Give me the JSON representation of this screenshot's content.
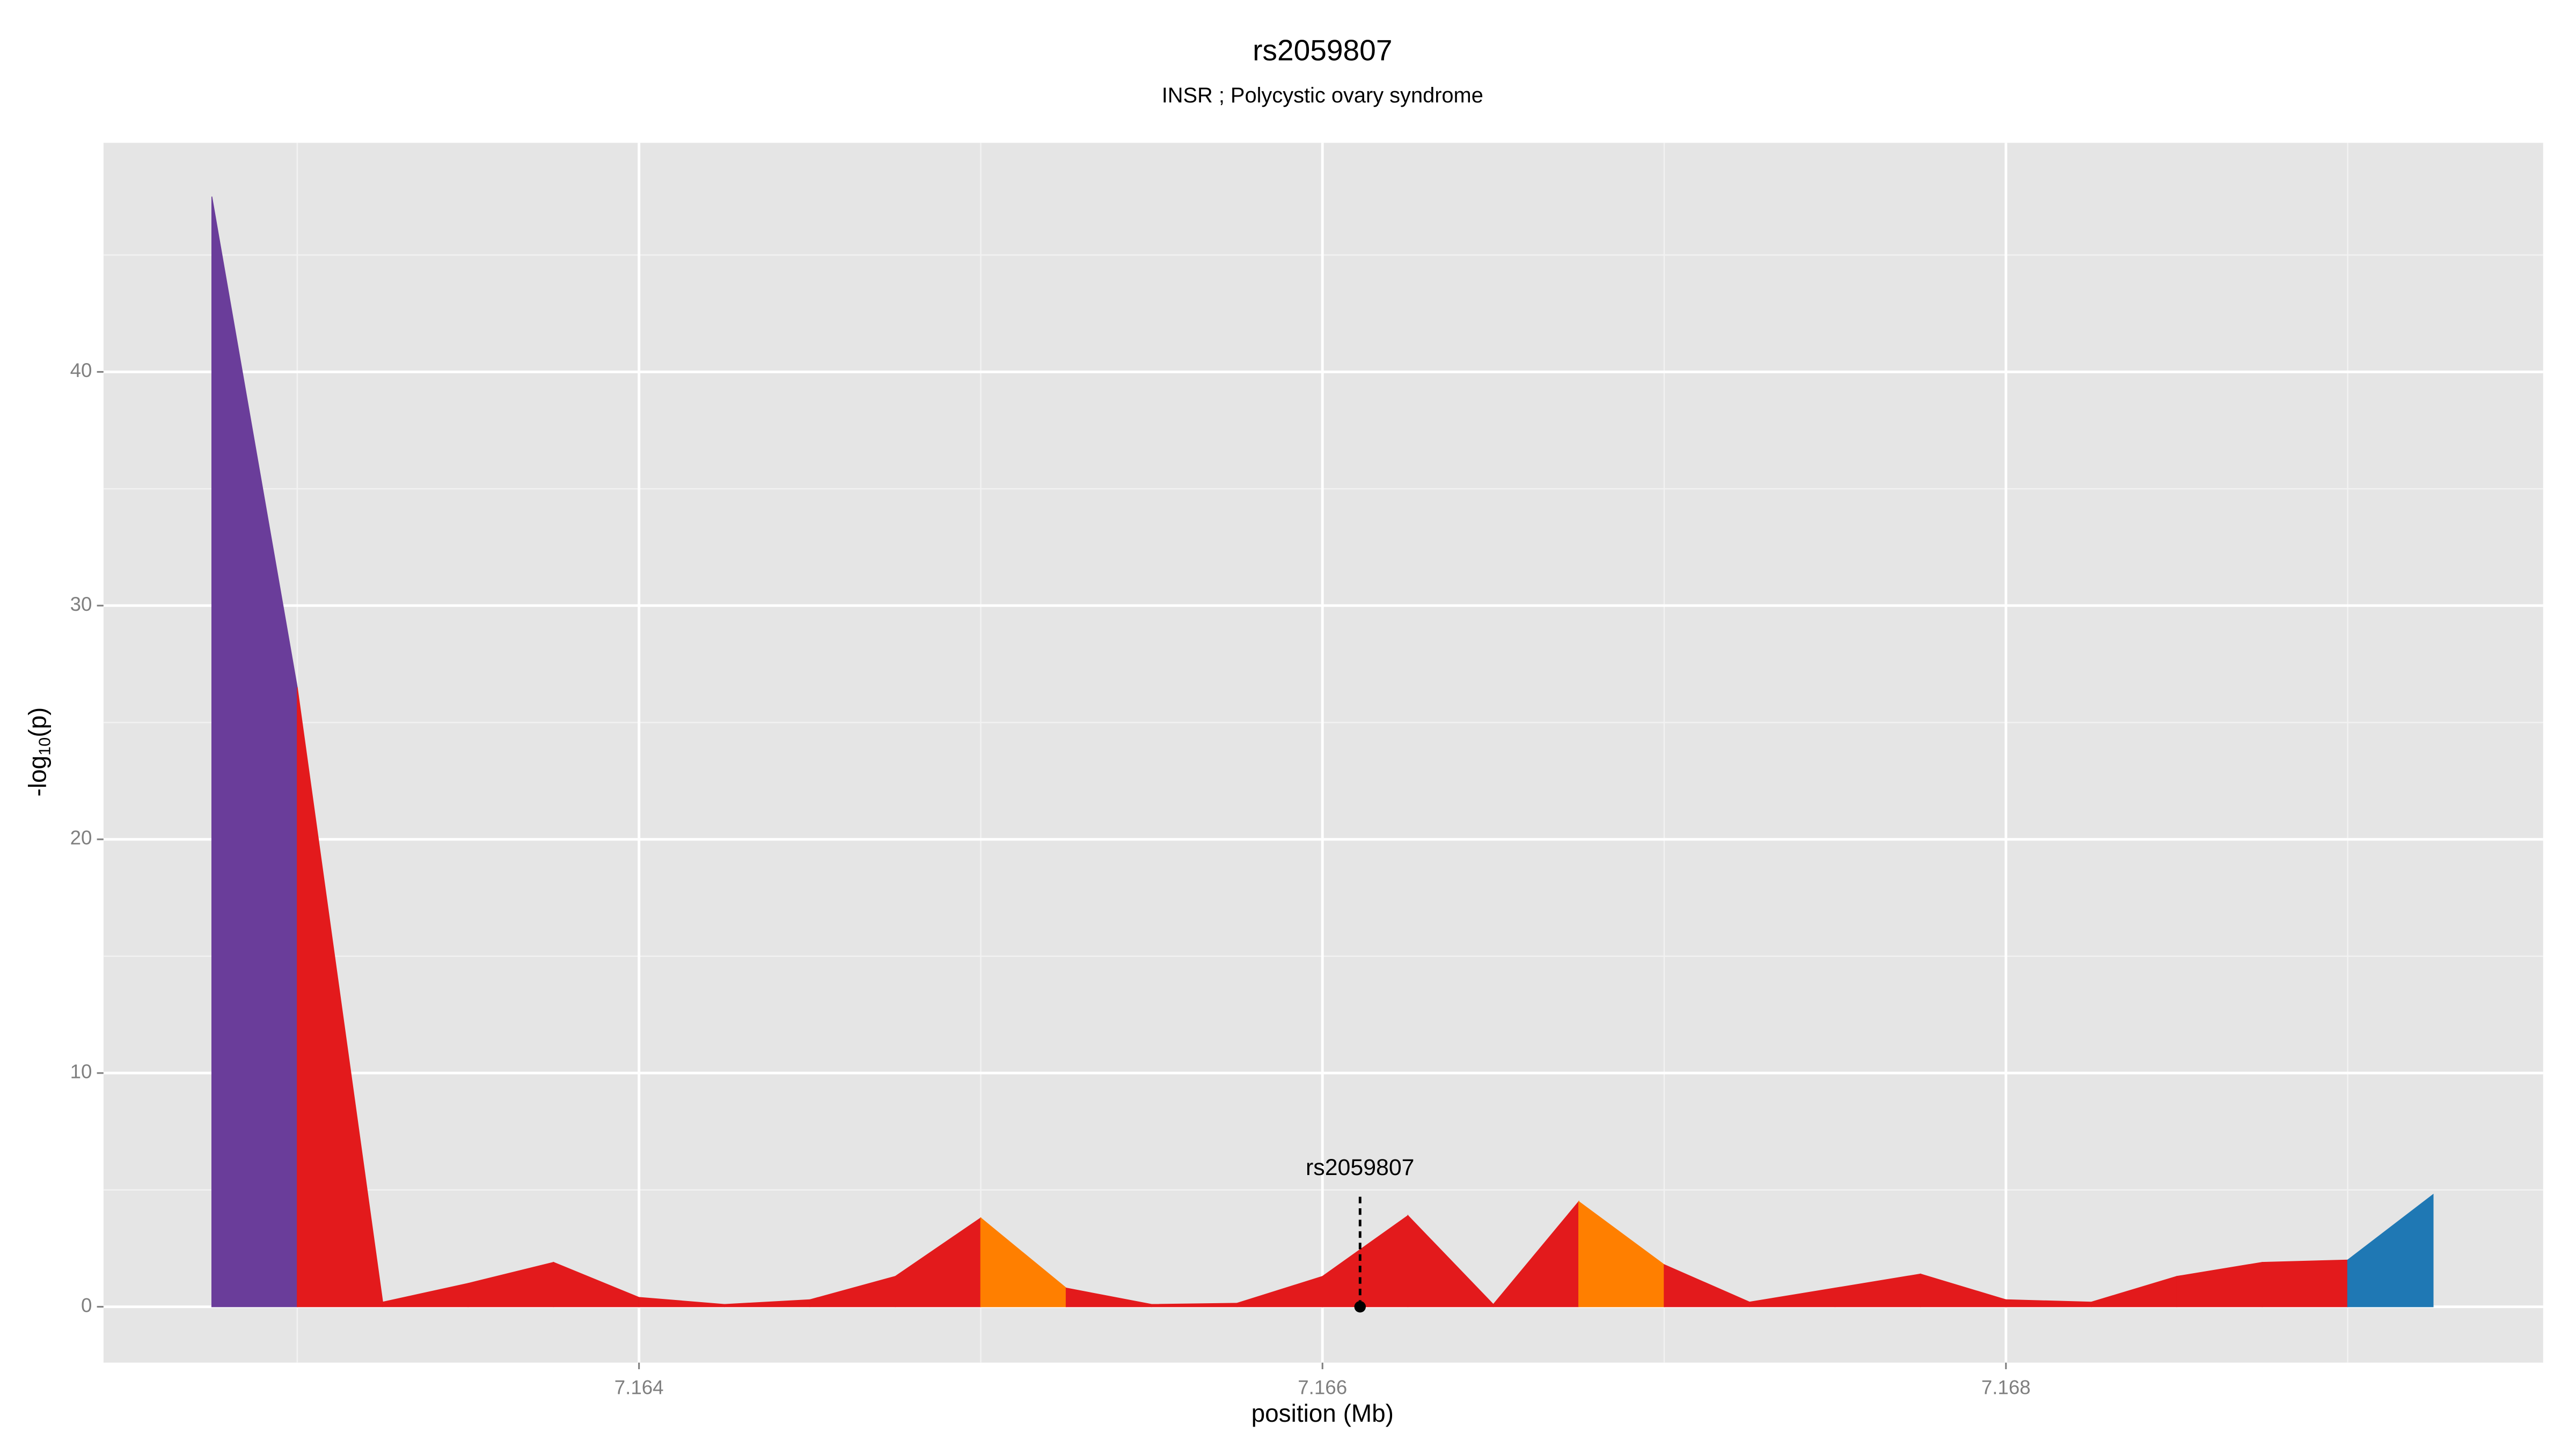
{
  "chart_data": {
    "type": "area",
    "title": "rs2059807",
    "subtitle": "INSR ; Polycystic ovary syndrome",
    "xlabel": "position (Mb)",
    "ylabel": [
      "-log",
      "10",
      "(p)"
    ],
    "x": [
      7.16275,
      7.163,
      7.16325,
      7.1635,
      7.16375,
      7.164,
      7.16425,
      7.1645,
      7.16475,
      7.165,
      7.16525,
      7.1655,
      7.16575,
      7.166,
      7.16625,
      7.1665,
      7.16675,
      7.167,
      7.16725,
      7.1675,
      7.16775,
      7.168,
      7.16825,
      7.1685,
      7.16875,
      7.169,
      7.16925
    ],
    "values": [
      47.5,
      26.5,
      0.2,
      1.0,
      1.9,
      0.4,
      0.1,
      0.3,
      1.3,
      3.8,
      0.8,
      0.1,
      0.15,
      1.3,
      3.9,
      0.1,
      4.5,
      1.8,
      0.2,
      0.8,
      1.4,
      0.3,
      0.2,
      1.3,
      1.9,
      2.0,
      4.8
    ],
    "segment_colors": [
      "#6a3d9a",
      "#e31a1c",
      "#e31a1c",
      "#e31a1c",
      "#e31a1c",
      "#e31a1c",
      "#e31a1c",
      "#e31a1c",
      "#e31a1c",
      "#ff7f00",
      "#e31a1c",
      "#e31a1c",
      "#e31a1c",
      "#e31a1c",
      "#e31a1c",
      "#e31a1c",
      "#ff7f00",
      "#e31a1c",
      "#e31a1c",
      "#e31a1c",
      "#e31a1c",
      "#e31a1c",
      "#e31a1c",
      "#e31a1c",
      "#e31a1c",
      "#1f78b4"
    ],
    "xlim": [
      7.162433,
      7.169572
    ],
    "ylim": [
      -2.39,
      49.8
    ],
    "xticks": [
      7.164,
      7.166,
      7.168
    ],
    "yticks": [
      0,
      10,
      20,
      30,
      40
    ],
    "xminor": [
      7.163,
      7.165,
      7.167,
      7.169
    ],
    "yminor": [
      5,
      15,
      25,
      35,
      45
    ],
    "grid": true,
    "annotations": [
      {
        "label": "rs2059807",
        "x": 7.16611,
        "y": 0
      }
    ]
  }
}
